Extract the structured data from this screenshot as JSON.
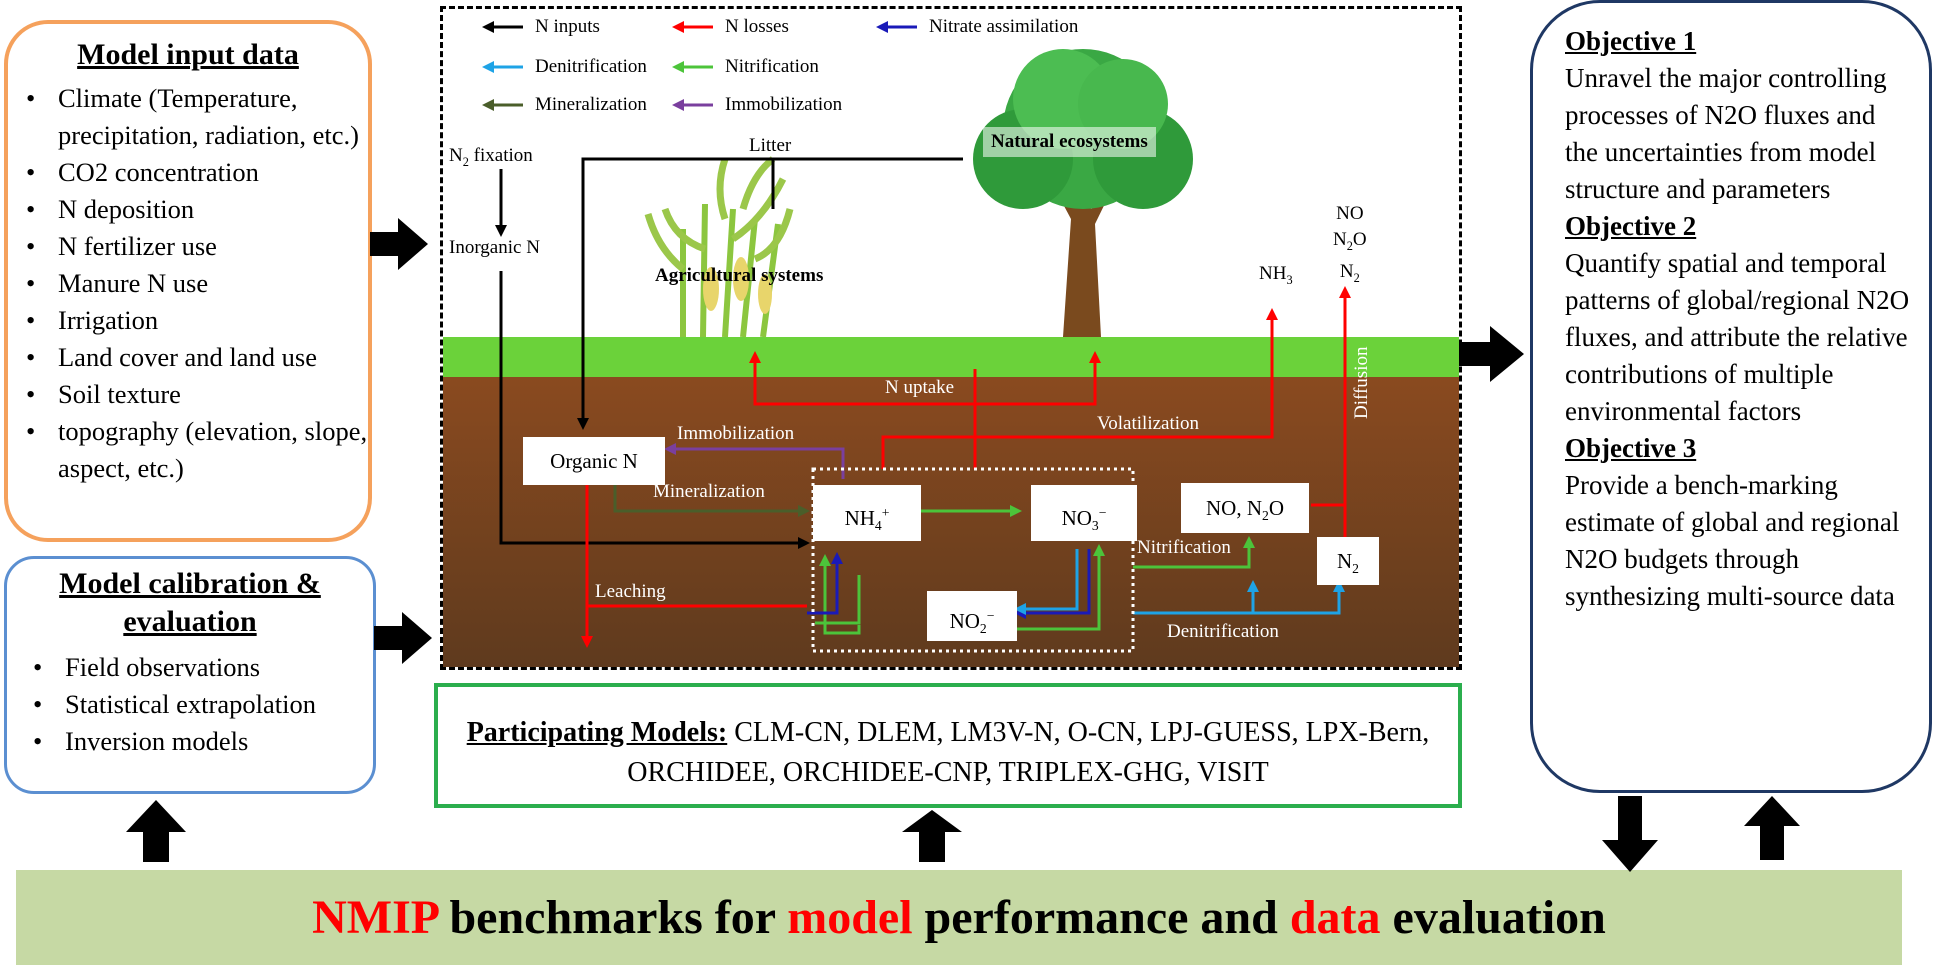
{
  "input_box": {
    "title": "Model input data",
    "items": [
      "Climate  (Temperature, precipitation, radiation, etc.)",
      "CO2 concentration",
      "N deposition",
      "N fertilizer use",
      "Manure N use",
      "Irrigation",
      "Land cover and land use",
      "Soil texture",
      "topography (elevation, slope, aspect, etc.)"
    ]
  },
  "calibration_box": {
    "title_line1": "Model calibration &",
    "title_line2": "evaluation",
    "items": [
      "Field observations",
      "Statistical extrapolation",
      "Inversion models"
    ]
  },
  "objectives": [
    {
      "title": "Objective 1",
      "text": "Unravel the major controlling processes of N2O fluxes and the uncertainties from model structure and parameters"
    },
    {
      "title": "Objective 2",
      "text": "Quantify spatial and temporal patterns of global/regional N2O fluxes, and attribute the relative contributions of multiple environmental factors"
    },
    {
      "title": "Objective 3",
      "text": "Provide a bench-marking estimate of global and regional N2O budgets through synthesizing multi-source data"
    }
  ],
  "models": {
    "label": "Participating Models:",
    "list": "CLM-CN, DLEM, LM3V-N, O-CN, LPJ-GUESS, LPX-Bern, ORCHIDEE, ORCHIDEE-CNP, TRIPLEX-GHG, VISIT"
  },
  "benchmark": {
    "w1": "NMIP",
    "w2": " benchmarks for ",
    "w3": "model",
    "w4": " performance and ",
    "w5": "data",
    "w6": " evaluation"
  },
  "legend": [
    {
      "label": "N inputs",
      "color": "#000000"
    },
    {
      "label": "N losses",
      "color": "#ff0000"
    },
    {
      "label": "Nitrate assimilation",
      "color": "#1a1ab8"
    },
    {
      "label": "Denitrification",
      "color": "#1ea3e6"
    },
    {
      "label": "Nitrification",
      "color": "#4cc43a"
    },
    {
      "label": "Mineralization",
      "color": "#4a5e2a"
    },
    {
      "label": "Immobilization",
      "color": "#7a3f9e"
    }
  ],
  "diagram": {
    "n2_fixation": "N2 fixation",
    "inorganic_n": "Inorganic N",
    "litter": "Litter",
    "natural_ecosystems": "Natural  ecosystems",
    "agricultural_systems": "Agricultural systems",
    "nh3": "NH3",
    "gases": [
      "NO",
      "N2O",
      "N2"
    ],
    "n_uptake": "N uptake",
    "volatilization": "Volatilization",
    "diffusion": "Diffusion",
    "immobilization": "Immobilization",
    "mineralization": "Mineralization",
    "leaching": "Leaching",
    "nitrification": "Nitrification",
    "denitrification": "Denitrification",
    "organic_n": "Organic N",
    "nh4": "NH4+",
    "no3": "NO3−",
    "no2": "NO2−",
    "no_n2o": "NO, N2O",
    "n2": "N2"
  }
}
